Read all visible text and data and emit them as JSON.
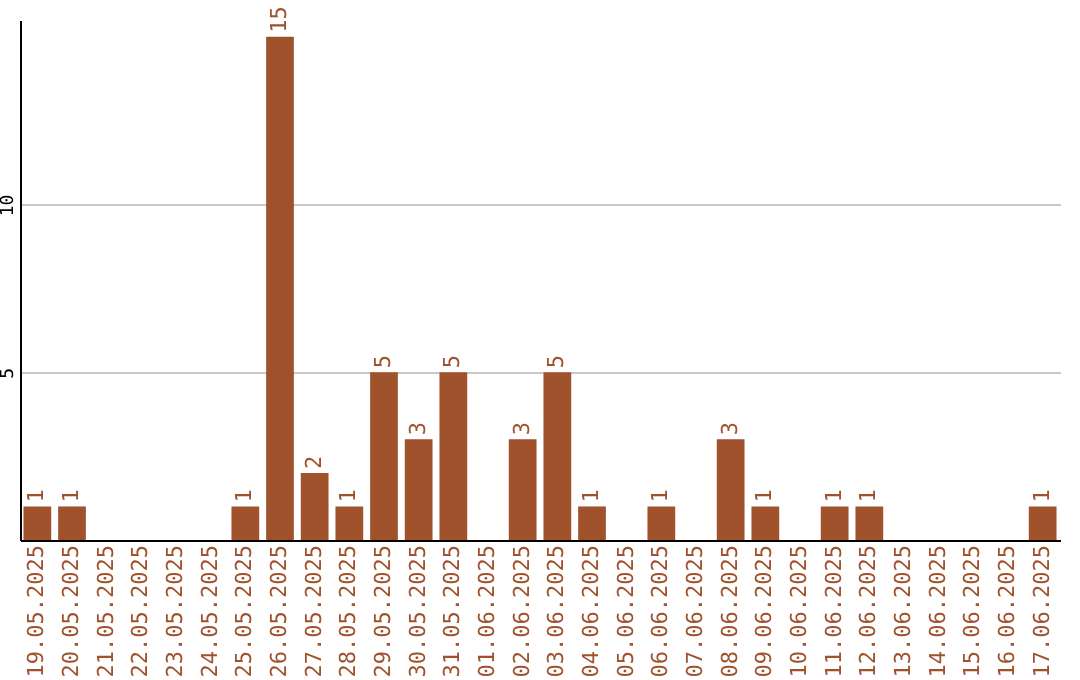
{
  "chart_data": {
    "type": "bar",
    "categories": [
      "19.05.2025",
      "20.05.2025",
      "21.05.2025",
      "22.05.2025",
      "23.05.2025",
      "24.05.2025",
      "25.05.2025",
      "26.05.2025",
      "27.05.2025",
      "28.05.2025",
      "29.05.2025",
      "30.05.2025",
      "31.05.2025",
      "01.06.2025",
      "02.06.2025",
      "03.06.2025",
      "04.06.2025",
      "05.06.2025",
      "06.06.2025",
      "07.06.2025",
      "08.06.2025",
      "09.06.2025",
      "10.06.2025",
      "11.06.2025",
      "12.06.2025",
      "13.06.2025",
      "14.06.2025",
      "15.06.2025",
      "16.06.2025",
      "17.06.2025"
    ],
    "values": [
      1,
      1,
      0,
      0,
      0,
      0,
      1,
      15,
      2,
      1,
      5,
      3,
      5,
      0,
      3,
      5,
      1,
      0,
      1,
      0,
      3,
      1,
      0,
      1,
      1,
      0,
      0,
      0,
      0,
      1
    ],
    "value_labels": [
      "1",
      "1",
      null,
      null,
      null,
      null,
      "1",
      "15",
      "2",
      "1",
      "5",
      "3",
      "5",
      null,
      "3",
      "5",
      "1",
      null,
      "1",
      null,
      "3",
      "1",
      null,
      "1",
      "1",
      null,
      null,
      null,
      null,
      "1"
    ],
    "color": "#a0522d",
    "ylim": [
      0,
      15.5
    ],
    "yticks": [
      5,
      10
    ],
    "grid": "y"
  }
}
